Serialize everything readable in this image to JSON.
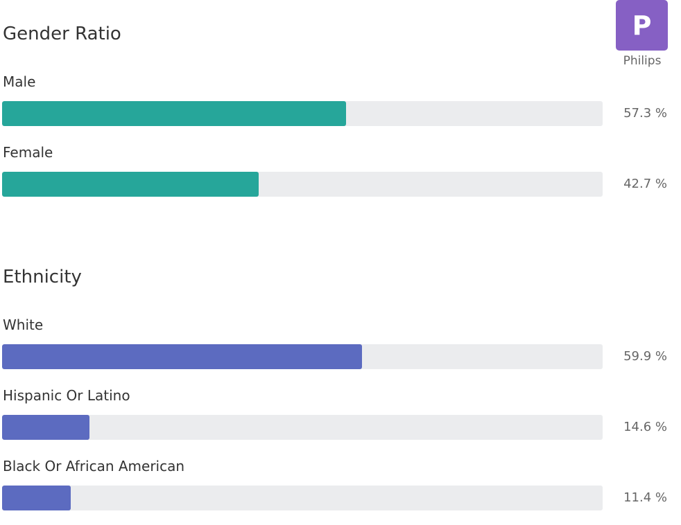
{
  "company": {
    "initial": "P",
    "name": "Philips",
    "logo_color": "#8660c4"
  },
  "gender": {
    "title": "Gender Ratio",
    "color": "#26a69a",
    "items": [
      {
        "label": "Male",
        "value": 57.3,
        "value_text": "57.3 %"
      },
      {
        "label": "Female",
        "value": 42.7,
        "value_text": "42.7 %"
      }
    ]
  },
  "ethnicity": {
    "title": "Ethnicity",
    "color": "#5c6bc0",
    "items": [
      {
        "label": "White",
        "value": 59.9,
        "value_text": "59.9 %"
      },
      {
        "label": "Hispanic Or Latino",
        "value": 14.6,
        "value_text": "14.6 %"
      },
      {
        "label": "Black Or African American",
        "value": 11.4,
        "value_text": "11.4 %"
      }
    ]
  },
  "track_color": "#ebecee"
}
